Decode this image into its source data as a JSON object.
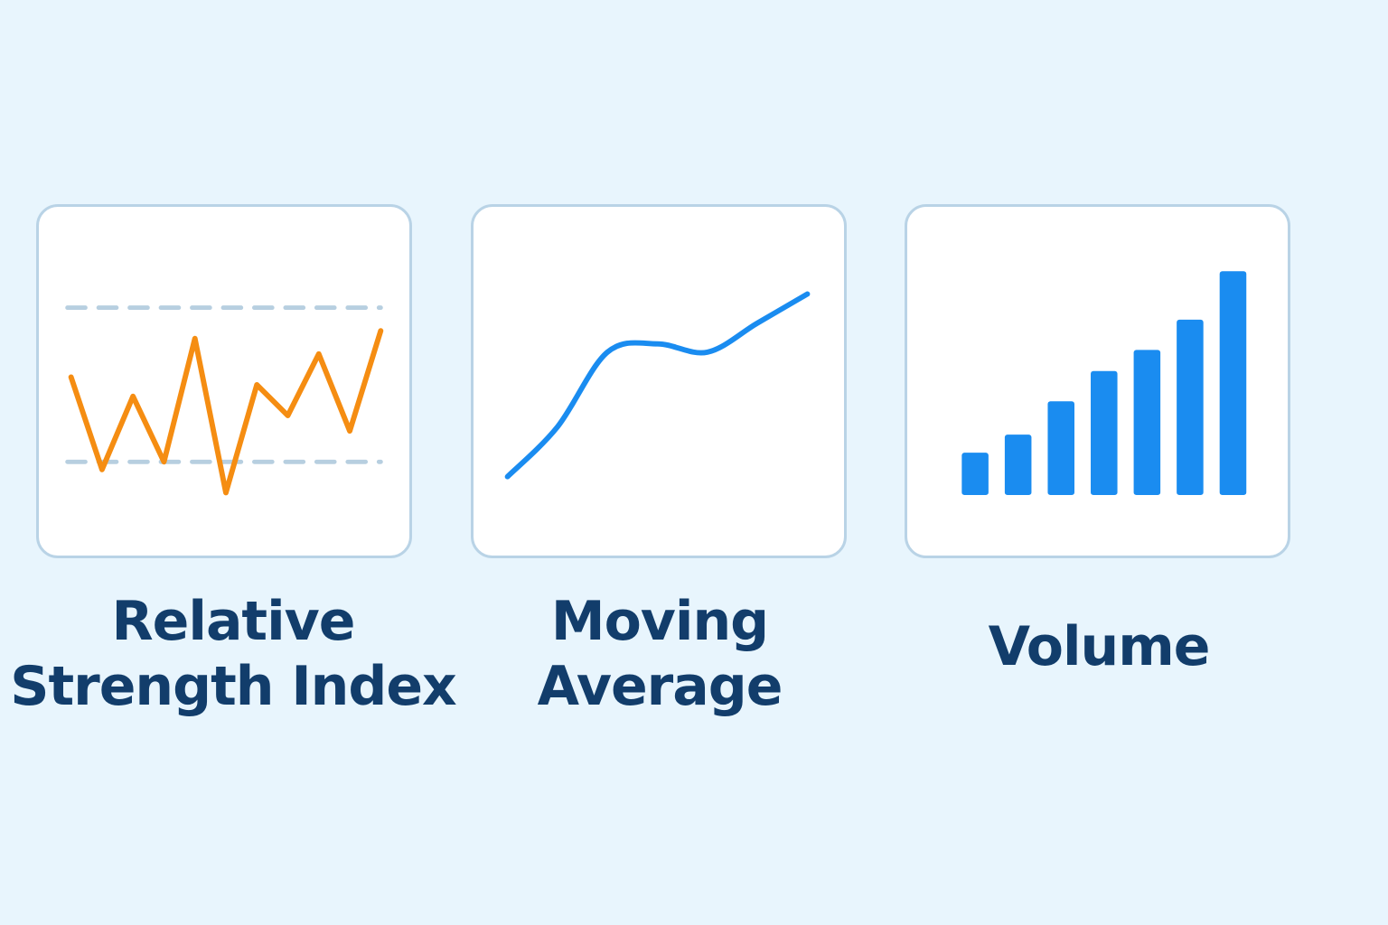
{
  "colors": {
    "background": "#e8f5fd",
    "card_border": "#b9d3e6",
    "label_text": "#123d6b",
    "rsi_line": "#f58d12",
    "rsi_bands": "#b7cfe0",
    "moving_average_line": "#1a8cf0",
    "volume_bars": "#1a8cf0"
  },
  "indicators": [
    {
      "label_lines": [
        "Relative",
        "Strength Index"
      ],
      "icon": "rsi-chart-icon",
      "chart_data": {
        "type": "line",
        "x": [
          0,
          1,
          2,
          3,
          4,
          5,
          6,
          7,
          8,
          9,
          10
        ],
        "values": [
          52,
          28,
          47,
          30,
          62,
          22,
          50,
          42,
          58,
          38,
          64
        ],
        "bands": [
          70,
          30
        ],
        "ylim": [
          20,
          80
        ]
      }
    },
    {
      "label_lines": [
        "Moving",
        "Average"
      ],
      "icon": "moving-average-chart-icon",
      "chart_data": {
        "type": "line",
        "x": [
          0,
          1,
          2,
          3,
          4,
          5,
          6
        ],
        "values": [
          10,
          22,
          40,
          42,
          40,
          47,
          54
        ],
        "ylim": [
          0,
          60
        ]
      }
    },
    {
      "label_lines": [
        "Volume"
      ],
      "icon": "volume-bar-chart-icon",
      "chart_data": {
        "type": "bar",
        "categories": [
          "1",
          "2",
          "3",
          "4",
          "5",
          "6",
          "7"
        ],
        "values": [
          14,
          20,
          31,
          41,
          48,
          58,
          74
        ],
        "ylim": [
          0,
          80
        ]
      }
    }
  ]
}
